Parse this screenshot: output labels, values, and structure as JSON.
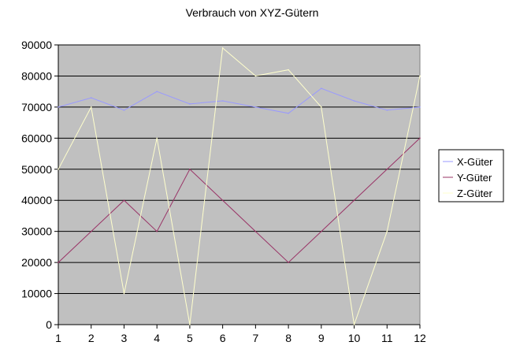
{
  "chart_data": {
    "type": "line",
    "title": "Verbrauch von XYZ-Gütern",
    "xlabel": "",
    "ylabel": "",
    "categories": [
      "1",
      "2",
      "3",
      "4",
      "5",
      "6",
      "7",
      "8",
      "9",
      "10",
      "11",
      "12"
    ],
    "ylim": [
      0,
      90000
    ],
    "yticks": [
      0,
      10000,
      20000,
      30000,
      40000,
      50000,
      60000,
      70000,
      80000,
      90000
    ],
    "grid": true,
    "legend_position": "right",
    "plot_background": "#c0c0c0",
    "series": [
      {
        "name": "X-Güter",
        "color": "#9999ff",
        "values": [
          70000,
          73000,
          69000,
          75000,
          71000,
          72000,
          70000,
          68000,
          76000,
          72000,
          69000,
          70000
        ]
      },
      {
        "name": "Y-Güter",
        "color": "#993366",
        "values": [
          20000,
          30000,
          40000,
          30000,
          50000,
          40000,
          30000,
          20000,
          30000,
          40000,
          50000,
          60000
        ]
      },
      {
        "name": "Z-Güter",
        "color": "#ffffcc",
        "values": [
          50000,
          70000,
          10000,
          60000,
          0,
          89000,
          80000,
          82000,
          70000,
          0,
          30000,
          80000
        ]
      }
    ]
  }
}
